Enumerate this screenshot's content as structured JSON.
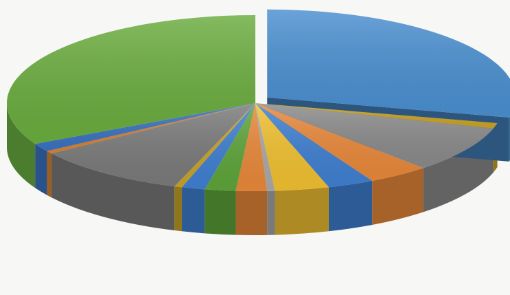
{
  "chart_data": {
    "type": "pie",
    "style": "3d-exploded",
    "title": "",
    "legend": "none",
    "data_labels": "none",
    "slices": [
      {
        "value": 28.5,
        "color": "#4a8fd0",
        "exploded": true
      },
      {
        "value": 1.0,
        "color": "#c9a227"
      },
      {
        "value": 8.5,
        "color": "#8a8a8a"
      },
      {
        "value": 4.0,
        "color": "#e8883a"
      },
      {
        "value": 3.0,
        "color": "#3f7fd0"
      },
      {
        "value": 3.5,
        "color": "#f0c030"
      },
      {
        "value": 0.5,
        "color": "#a9a9a9"
      },
      {
        "value": 2.0,
        "color": "#e8883a"
      },
      {
        "value": 2.0,
        "color": "#5ea43a"
      },
      {
        "value": 1.5,
        "color": "#3f7fd0"
      },
      {
        "value": 0.5,
        "color": "#c9a227"
      },
      {
        "value": 10.0,
        "color": "#7a7a7a"
      },
      {
        "value": 0.5,
        "color": "#d9822e"
      },
      {
        "value": 1.5,
        "color": "#3a72c0"
      },
      {
        "value": 32.5,
        "color": "#6aac3e"
      }
    ]
  }
}
